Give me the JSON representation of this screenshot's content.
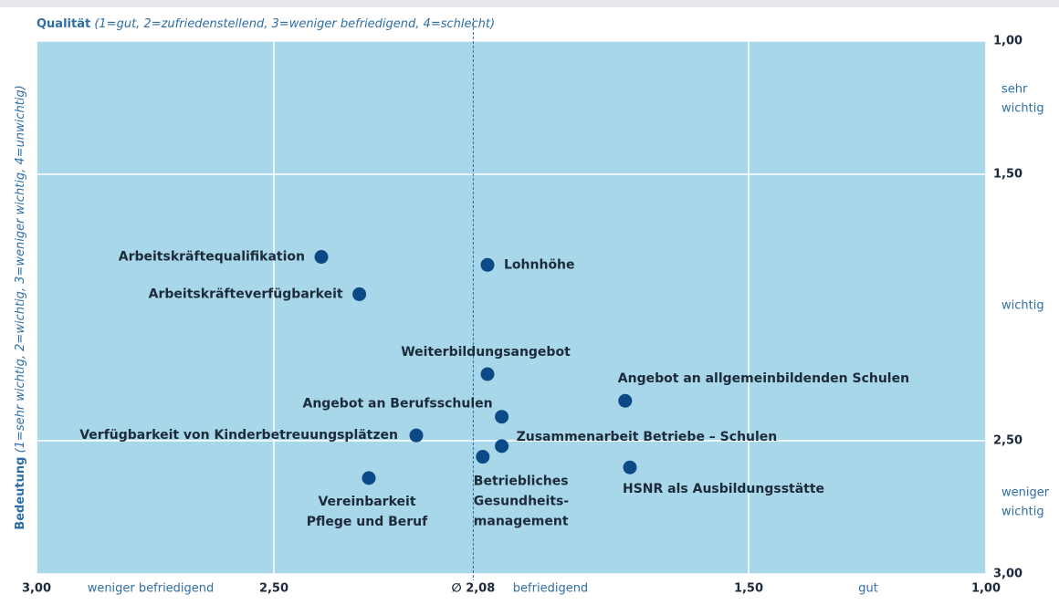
{
  "chart_data": {
    "type": "scatter",
    "title": {
      "bold": "Qualität",
      "italic": "(1=gut, 2=zufriedenstellend, 3=weniger befriedigend, 4=schlecht)"
    },
    "y_label": {
      "bold": "Bedeutung",
      "italic": "(1=sehr wichtig, 2=wichtig, 3=weniger wichtig, 4=unwichtig)"
    },
    "xlim": [
      3,
      1
    ],
    "ylim": [
      3,
      1
    ],
    "xticks": [
      {
        "value": 3,
        "label": "3,00"
      },
      {
        "value": 2.5,
        "label": "2,50"
      },
      {
        "value": 1.5,
        "label": "1,50"
      },
      {
        "value": 1,
        "label": "1,00"
      }
    ],
    "yticks": [
      {
        "value": 1,
        "label": "1,00"
      },
      {
        "value": 1.5,
        "label": "1,50"
      },
      {
        "value": 2.5,
        "label": "2,50"
      },
      {
        "value": 3,
        "label": "3,00"
      }
    ],
    "grid": true,
    "mean": {
      "value": 2.08,
      "label": "∅ 2,08"
    },
    "x_annotations": [
      "weniger befriedigend",
      "befriedigend",
      "gut"
    ],
    "y_annotations": [
      [
        "sehr",
        "wichtig"
      ],
      [
        "wichtig"
      ],
      [
        "weniger",
        "wichtig"
      ]
    ],
    "color": "#0b4a86",
    "background": "#a7d7e9",
    "labels": [
      [
        "Arbeitskräftequalifikation"
      ],
      [
        "Lohnhöhe"
      ],
      [
        "Arbeitskräfteverfügbarkeit"
      ],
      [
        "Weiterbildungsangebot"
      ],
      [
        "Angebot an allgemeinbildenden Schulen"
      ],
      [
        "Angebot an Berufsschulen"
      ],
      [
        "Verfügbarkeit von Kinderbetreuungsplätzen"
      ],
      [
        "Zusammenarbeit Betriebe – Schulen"
      ],
      [
        "Betriebliches",
        "Gesundheits-",
        "management"
      ],
      [
        "HSNR als Ausbildungsstätte"
      ],
      [
        "Vereinbarkeit",
        "Pflege und Beruf"
      ]
    ],
    "x": [
      2.4,
      2.05,
      2.32,
      2.05,
      1.76,
      2.02,
      2.2,
      2.02,
      2.06,
      1.75,
      2.3
    ],
    "y": [
      1.81,
      1.84,
      1.95,
      2.25,
      2.35,
      2.41,
      2.48,
      2.52,
      2.56,
      2.6,
      2.64
    ]
  }
}
